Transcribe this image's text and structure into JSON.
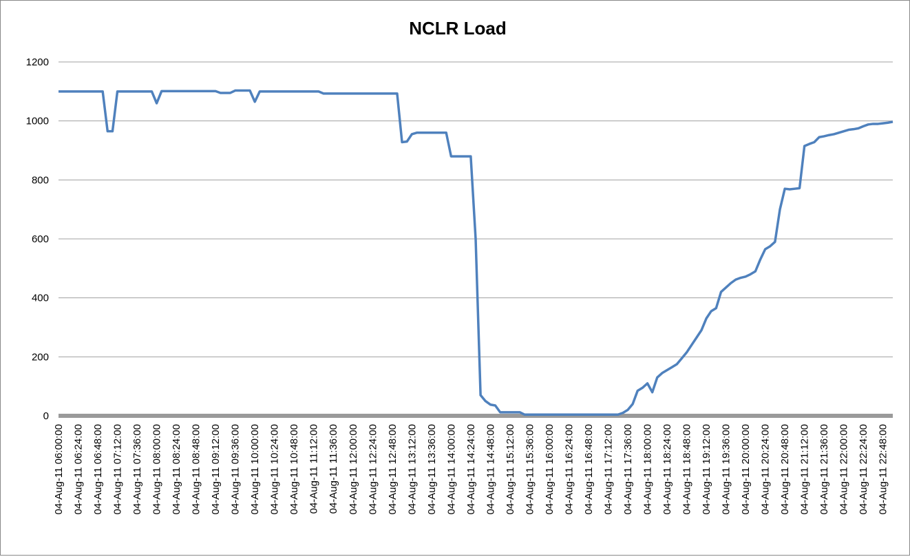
{
  "chart_data": {
    "type": "line",
    "title": "NCLR Load",
    "categories": [
      "04-Aug-11 06:00:00",
      null,
      null,
      null,
      "04-Aug-11 06:24:00",
      null,
      null,
      null,
      "04-Aug-11 06:48:00",
      null,
      null,
      null,
      "04-Aug-11 07:12:00",
      null,
      null,
      null,
      "04-Aug-11 07:36:00",
      null,
      null,
      null,
      "04-Aug-11 08:00:00",
      null,
      null,
      null,
      "04-Aug-11 08:24:00",
      null,
      null,
      null,
      "04-Aug-11 08:48:00",
      null,
      null,
      null,
      "04-Aug-11 09:12:00",
      null,
      null,
      null,
      "04-Aug-11 09:36:00",
      null,
      null,
      null,
      "04-Aug-11 10:00:00",
      null,
      null,
      null,
      "04-Aug-11 10:24:00",
      null,
      null,
      null,
      "04-Aug-11 10:48:00",
      null,
      null,
      null,
      "04-Aug-11 11:12:00",
      null,
      null,
      null,
      "04-Aug-11 11:36:00",
      null,
      null,
      null,
      "04-Aug-11 12:00:00",
      null,
      null,
      null,
      "04-Aug-11 12:24:00",
      null,
      null,
      null,
      "04-Aug-11 12:48:00",
      null,
      null,
      null,
      "04-Aug-11 13:12:00",
      null,
      null,
      null,
      "04-Aug-11 13:36:00",
      null,
      null,
      null,
      "04-Aug-11 14:00:00",
      null,
      null,
      null,
      "04-Aug-11 14:24:00",
      null,
      null,
      null,
      "04-Aug-11 14:48:00",
      null,
      null,
      null,
      "04-Aug-11 15:12:00",
      null,
      null,
      null,
      "04-Aug-11 15:36:00",
      null,
      null,
      null,
      "04-Aug-11 16:00:00",
      null,
      null,
      null,
      "04-Aug-11 16:24:00",
      null,
      null,
      null,
      "04-Aug-11 16:48:00",
      null,
      null,
      null,
      "04-Aug-11 17:12:00",
      null,
      null,
      null,
      "04-Aug-11 17:36:00",
      null,
      null,
      null,
      "04-Aug-11 18:00:00",
      null,
      null,
      null,
      "04-Aug-11 18:24:00",
      null,
      null,
      null,
      "04-Aug-11 18:48:00",
      null,
      null,
      null,
      "04-Aug-11 19:12:00",
      null,
      null,
      null,
      "04-Aug-11 19:36:00",
      null,
      null,
      null,
      "04-Aug-11 20:00:00",
      null,
      null,
      null,
      "04-Aug-11 20:24:00",
      null,
      null,
      null,
      "04-Aug-11 20:48:00",
      null,
      null,
      null,
      "04-Aug-11 21:12:00",
      null,
      null,
      null,
      "04-Aug-11 21:36:00",
      null,
      null,
      null,
      "04-Aug-11 22:00:00",
      null,
      null,
      null,
      "04-Aug-11 22:24:00",
      null,
      null,
      null,
      "04-Aug-11 22:48:00",
      null,
      null
    ],
    "values": [
      1100,
      1100,
      1100,
      1100,
      1100,
      1100,
      1100,
      1100,
      1100,
      1100,
      965,
      965,
      1100,
      1100,
      1100,
      1100,
      1100,
      1100,
      1100,
      1100,
      1060,
      1101,
      1101,
      1101,
      1101,
      1101,
      1101,
      1101,
      1101,
      1101,
      1101,
      1101,
      1101,
      1095,
      1095,
      1095,
      1103,
      1103,
      1103,
      1103,
      1065,
      1100,
      1100,
      1100,
      1100,
      1100,
      1100,
      1100,
      1100,
      1100,
      1100,
      1100,
      1100,
      1100,
      1093,
      1093,
      1093,
      1093,
      1093,
      1093,
      1093,
      1093,
      1093,
      1093,
      1093,
      1093,
      1093,
      1093,
      1093,
      1093,
      928,
      930,
      955,
      960,
      960,
      960,
      960,
      960,
      960,
      960,
      880,
      880,
      880,
      880,
      880,
      600,
      70,
      50,
      38,
      35,
      12,
      12,
      12,
      12,
      12,
      4,
      4,
      4,
      4,
      4,
      4,
      4,
      4,
      4,
      4,
      4,
      4,
      4,
      4,
      4,
      4,
      4,
      4,
      4,
      4,
      10,
      20,
      40,
      85,
      95,
      110,
      80,
      130,
      145,
      155,
      165,
      175,
      195,
      215,
      240,
      265,
      290,
      330,
      355,
      365,
      420,
      435,
      450,
      462,
      468,
      472,
      480,
      490,
      530,
      565,
      575,
      590,
      700,
      770,
      768,
      770,
      772,
      915,
      922,
      928,
      945,
      948,
      952,
      955,
      960,
      965,
      970,
      972,
      975,
      982,
      988,
      990,
      990,
      992,
      994,
      997
    ],
    "color": "#4f81bd",
    "ylim": [
      0,
      1200
    ],
    "yticks": [
      0,
      200,
      400,
      600,
      800,
      1000,
      1200
    ],
    "grid": true
  }
}
